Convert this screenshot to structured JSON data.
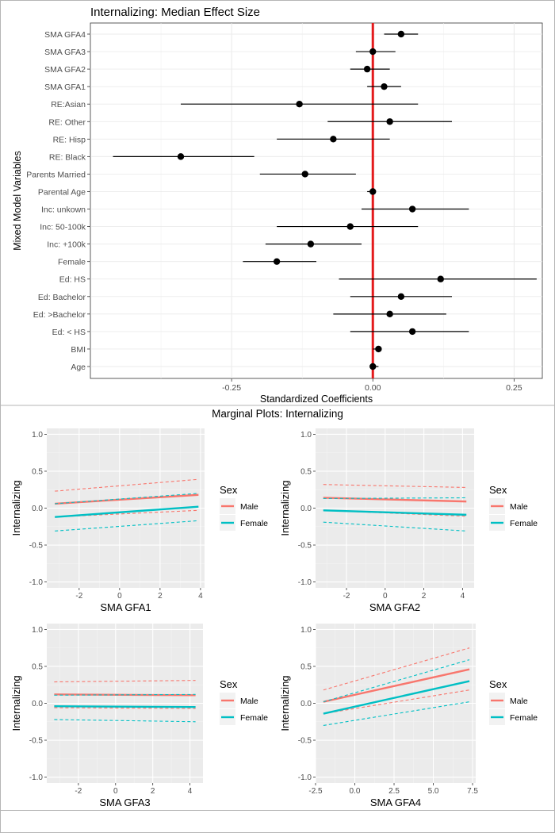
{
  "colors": {
    "panel_bg": "#ebebeb",
    "grid": "#ffffff",
    "male": "#f8766d",
    "female": "#00bfc4",
    "zero_line": "#e41a1c",
    "point": "#000000",
    "text": "#4d4d4d",
    "title_text": "#000000"
  },
  "forest": {
    "title": "Internalizing: Median Effect Size",
    "xlabel": "Standardized Coefficients",
    "ylabel": "Mixed Model Variables",
    "xlim": [
      -0.5,
      0.3
    ],
    "xticks": [
      -0.25,
      0.0,
      0.25
    ],
    "xtick_labels": [
      "-0.25",
      "0.00",
      "0.25"
    ]
  },
  "marginal": {
    "title": "Marginal Plots: Internalizing",
    "ylabel": "Internalizing",
    "legend_title": "Sex",
    "legend_labels": [
      "Male",
      "Female"
    ],
    "yticks": [
      "1.0",
      "0.5",
      "0.0",
      "-0.5",
      "-1.0"
    ]
  },
  "chart_data": [
    {
      "type": "scatter",
      "subtype": "coefficient-forest",
      "title": "Internalizing: Median Effect Size",
      "xlabel": "Standardized Coefficients",
      "ylabel": "Mixed Model Variables",
      "xlim": [
        -0.5,
        0.3
      ],
      "reference_line": 0,
      "rows": [
        {
          "label": "SMA GFA4",
          "est": 0.05,
          "lo": 0.02,
          "hi": 0.08
        },
        {
          "label": "SMA GFA3",
          "est": 0.0,
          "lo": -0.03,
          "hi": 0.04
        },
        {
          "label": "SMA GFA2",
          "est": -0.01,
          "lo": -0.04,
          "hi": 0.03
        },
        {
          "label": "SMA GFA1",
          "est": 0.02,
          "lo": -0.01,
          "hi": 0.05
        },
        {
          "label": "RE:Asian",
          "est": -0.13,
          "lo": -0.34,
          "hi": 0.08
        },
        {
          "label": "RE: Other",
          "est": 0.03,
          "lo": -0.08,
          "hi": 0.14
        },
        {
          "label": "RE: Hisp",
          "est": -0.07,
          "lo": -0.17,
          "hi": 0.03
        },
        {
          "label": "RE: Black",
          "est": -0.34,
          "lo": -0.46,
          "hi": -0.21
        },
        {
          "label": "Parents Married",
          "est": -0.12,
          "lo": -0.2,
          "hi": -0.03
        },
        {
          "label": "Parental Age",
          "est": 0.0,
          "lo": -0.01,
          "hi": 0.0
        },
        {
          "label": "Inc: unkown",
          "est": 0.07,
          "lo": -0.02,
          "hi": 0.17
        },
        {
          "label": "Inc: 50-100k",
          "est": -0.04,
          "lo": -0.17,
          "hi": 0.08
        },
        {
          "label": "Inc: +100k",
          "est": -0.11,
          "lo": -0.19,
          "hi": -0.02
        },
        {
          "label": "Female",
          "est": -0.17,
          "lo": -0.23,
          "hi": -0.1
        },
        {
          "label": "Ed: HS",
          "est": 0.12,
          "lo": -0.06,
          "hi": 0.29
        },
        {
          "label": "Ed: Bachelor",
          "est": 0.05,
          "lo": -0.04,
          "hi": 0.14
        },
        {
          "label": "Ed: >Bachelor",
          "est": 0.03,
          "lo": -0.07,
          "hi": 0.13
        },
        {
          "label": "Ed: < HS",
          "est": 0.07,
          "lo": -0.04,
          "hi": 0.17
        },
        {
          "label": "BMI",
          "est": 0.01,
          "lo": 0.0,
          "hi": 0.01
        },
        {
          "label": "Age",
          "est": 0.0,
          "lo": 0.0,
          "hi": 0.01
        }
      ]
    },
    {
      "type": "line",
      "title": "Marginal Plots: Internalizing",
      "xlabel": "SMA GFA1",
      "ylabel": "Internalizing",
      "xlim": [
        -3.6,
        4.2
      ],
      "ylim": [
        -1.08,
        1.08
      ],
      "xticks": [
        -2,
        0,
        2,
        4
      ],
      "xtick_labels": [
        "-2",
        "0",
        "2",
        "4"
      ],
      "yticks": [
        1.0,
        0.5,
        0.0,
        -0.5,
        -1.0
      ],
      "legend_title": "Sex",
      "series": [
        {
          "name": "Male",
          "x": [
            -3.2,
            3.9
          ],
          "fit": [
            0.06,
            0.18
          ],
          "lower": [
            -0.12,
            -0.03
          ],
          "upper": [
            0.23,
            0.39
          ]
        },
        {
          "name": "Female",
          "x": [
            -3.2,
            3.9
          ],
          "fit": [
            -0.12,
            0.02
          ],
          "lower": [
            -0.31,
            -0.17
          ],
          "upper": [
            0.06,
            0.2
          ]
        }
      ]
    },
    {
      "type": "line",
      "title": "Marginal Plots: Internalizing",
      "xlabel": "SMA GFA2",
      "ylabel": "Internalizing",
      "xlim": [
        -3.6,
        4.6
      ],
      "ylim": [
        -1.08,
        1.08
      ],
      "xticks": [
        -2,
        0,
        2,
        4
      ],
      "xtick_labels": [
        "-2",
        "0",
        "2",
        "4"
      ],
      "yticks": [
        1.0,
        0.5,
        0.0,
        -0.5,
        -1.0
      ],
      "legend_title": "Sex",
      "series": [
        {
          "name": "Male",
          "x": [
            -3.2,
            4.2
          ],
          "fit": [
            0.14,
            0.09
          ],
          "lower": [
            -0.03,
            -0.11
          ],
          "upper": [
            0.32,
            0.28
          ]
        },
        {
          "name": "Female",
          "x": [
            -3.2,
            4.2
          ],
          "fit": [
            -0.03,
            -0.09
          ],
          "lower": [
            -0.19,
            -0.31
          ],
          "upper": [
            0.13,
            0.14
          ]
        }
      ]
    },
    {
      "type": "line",
      "title": "Marginal Plots: Internalizing",
      "xlabel": "SMA GFA3",
      "ylabel": "Internalizing",
      "xlim": [
        -3.7,
        4.7
      ],
      "ylim": [
        -1.08,
        1.08
      ],
      "xticks": [
        -2,
        0,
        2,
        4
      ],
      "xtick_labels": [
        "-2",
        "0",
        "2",
        "4"
      ],
      "yticks": [
        1.0,
        0.5,
        0.0,
        -0.5,
        -1.0
      ],
      "legend_title": "Sex",
      "series": [
        {
          "name": "Male",
          "x": [
            -3.3,
            4.3
          ],
          "fit": [
            0.12,
            0.11
          ],
          "lower": [
            -0.06,
            -0.07
          ],
          "upper": [
            0.29,
            0.31
          ]
        },
        {
          "name": "Female",
          "x": [
            -3.3,
            4.3
          ],
          "fit": [
            -0.04,
            -0.05
          ],
          "lower": [
            -0.22,
            -0.25
          ],
          "upper": [
            0.11,
            0.12
          ]
        }
      ]
    },
    {
      "type": "line",
      "title": "Marginal Plots: Internalizing",
      "xlabel": "SMA GFA4",
      "ylabel": "Internalizing",
      "xlim": [
        -2.5,
        7.7
      ],
      "ylim": [
        -1.08,
        1.08
      ],
      "xticks": [
        -2.5,
        0.0,
        2.5,
        5.0,
        7.5
      ],
      "xtick_labels": [
        "-2.5",
        "0.0",
        "2.5",
        "5.0",
        "7.5"
      ],
      "yticks": [
        1.0,
        0.5,
        0.0,
        -0.5,
        -1.0
      ],
      "legend_title": "Sex",
      "series": [
        {
          "name": "Male",
          "x": [
            -2.0,
            7.3
          ],
          "fit": [
            0.02,
            0.46
          ],
          "lower": [
            -0.14,
            0.18
          ],
          "upper": [
            0.18,
            0.75
          ]
        },
        {
          "name": "Female",
          "x": [
            -2.0,
            7.3
          ],
          "fit": [
            -0.14,
            0.3
          ],
          "lower": [
            -0.3,
            0.02
          ],
          "upper": [
            0.02,
            0.59
          ]
        }
      ]
    }
  ]
}
